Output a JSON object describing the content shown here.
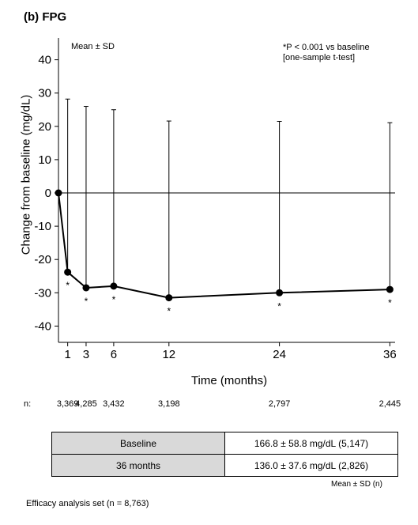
{
  "panel_title": "(b) FPG",
  "sd_note": "Mean ± SD",
  "significance_note": [
    "*P < 0.001 vs baseline",
    "[one-sample t-test]"
  ],
  "n_label": "n:",
  "chart_data": {
    "type": "line",
    "title": "(b) FPG",
    "xlabel": "Time (months)",
    "ylabel": "Change from baseline (mg/dL)",
    "ylim": [
      -45,
      45
    ],
    "y_ticks": [
      40,
      30,
      20,
      10,
      0,
      -10,
      -20,
      -30,
      -40
    ],
    "x_ticks": [
      1,
      3,
      6,
      12,
      24,
      36
    ],
    "x": [
      0,
      1,
      3,
      6,
      12,
      24,
      36
    ],
    "y": [
      0,
      -23.8,
      -28.5,
      -28.0,
      -31.5,
      -30.0,
      -29.0
    ],
    "error_upper": [
      null,
      28.2,
      26.0,
      25.0,
      21.6,
      21.5,
      21.1
    ],
    "significant": [
      false,
      true,
      true,
      true,
      true,
      true,
      true
    ],
    "significance_marker": "*",
    "n": [
      "3,369",
      "4,285",
      "3,432",
      "3,198",
      "2,797",
      "2,445"
    ],
    "error_type": "Mean ± SD",
    "reference_line": 0
  },
  "table": {
    "rows": [
      {
        "label": "Baseline",
        "value": "166.8 ± 58.8 mg/dL (5,147)"
      },
      {
        "label": "36 months",
        "value": "136.0 ± 37.6 mg/dL (2,826)"
      }
    ],
    "note": "Mean ± SD (n)"
  },
  "footnote": "Efficacy analysis set (n = 8,763)",
  "colors": {
    "line": "#000000",
    "table_label_bg": "#d9d9d9"
  }
}
